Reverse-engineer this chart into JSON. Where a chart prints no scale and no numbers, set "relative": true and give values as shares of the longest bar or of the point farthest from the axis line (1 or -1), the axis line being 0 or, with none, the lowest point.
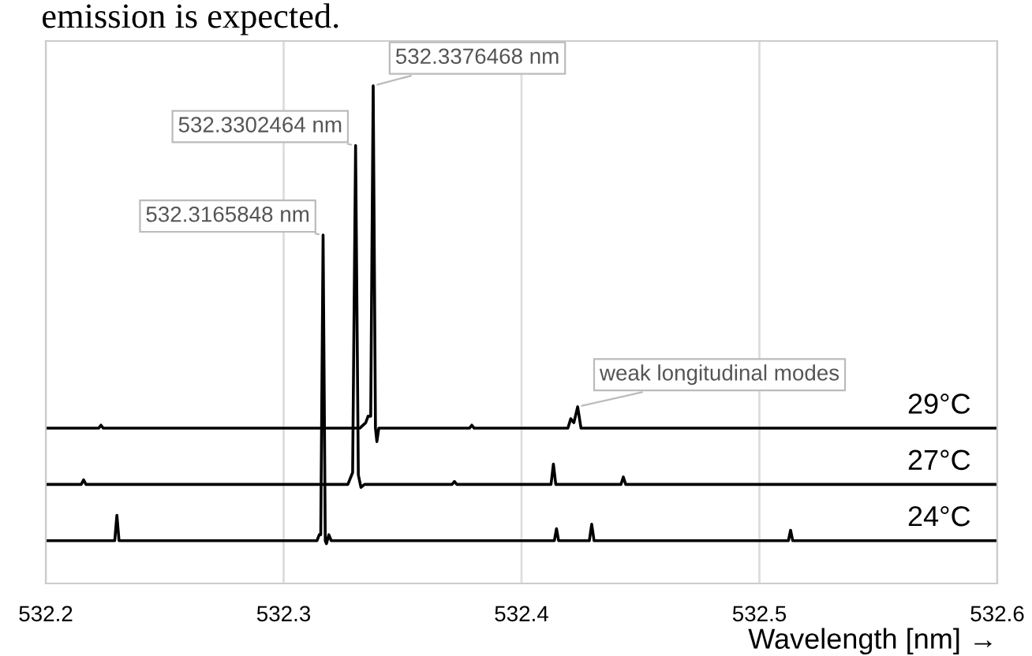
{
  "chart_data": {
    "type": "line",
    "relative": true,
    "xlabel": "Wavelength [nm] →",
    "xlim": [
      532.2,
      532.6
    ],
    "xticks": [
      532.2,
      532.3,
      532.4,
      532.5,
      532.6
    ],
    "grid": "x",
    "tick_labels": "x",
    "legend": false,
    "series": [
      {
        "name": "29°C",
        "color": "#000000",
        "x": [
          532.2,
          532.2222,
          532.2232,
          532.2242,
          532.332,
          532.3345,
          532.3355,
          532.3366,
          532.3376468,
          532.3386,
          532.3392,
          532.34,
          532.3781,
          532.3791,
          532.3801,
          532.4195,
          532.4207,
          532.422,
          532.4236,
          532.425,
          532.6
        ],
        "values": [
          0.312,
          0.312,
          0.318,
          0.312,
          0.312,
          0.323,
          0.336,
          0.336,
          1.0,
          0.312,
          0.285,
          0.312,
          0.312,
          0.318,
          0.312,
          0.312,
          0.331,
          0.323,
          0.355,
          0.312,
          0.312
        ]
      },
      {
        "name": "27°C",
        "color": "#000000",
        "x": [
          532.2,
          532.2149,
          532.2159,
          532.2169,
          532.327,
          532.329,
          532.3302464,
          532.3314,
          532.3325,
          532.334,
          532.3708,
          532.3718,
          532.3728,
          532.4124,
          532.4134,
          532.4144,
          532.4418,
          532.4428,
          532.4438,
          532.6
        ],
        "values": [
          0.199,
          0.199,
          0.208,
          0.199,
          0.199,
          0.223,
          0.88,
          0.218,
          0.193,
          0.199,
          0.199,
          0.205,
          0.199,
          0.199,
          0.24,
          0.199,
          0.199,
          0.214,
          0.199,
          0.199
        ]
      },
      {
        "name": "24°C",
        "color": "#000000",
        "x": [
          532.2,
          532.229,
          532.2299,
          532.2308,
          532.314,
          532.315,
          532.3156,
          532.3165848,
          532.3175,
          532.318,
          532.319,
          532.32,
          532.4138,
          532.4147,
          532.4156,
          532.4285,
          532.4295,
          532.4305,
          532.5122,
          532.5131,
          532.514,
          532.6
        ],
        "values": [
          0.086,
          0.086,
          0.137,
          0.086,
          0.086,
          0.098,
          0.098,
          0.7,
          0.086,
          0.08,
          0.098,
          0.086,
          0.086,
          0.11,
          0.086,
          0.086,
          0.119,
          0.086,
          0.086,
          0.107,
          0.086,
          0.086
        ]
      }
    ],
    "annotations": [
      "emission is expected.",
      {
        "text": "532.3165848 nm",
        "x": 532.3165848,
        "y": 0.7
      },
      {
        "text": "532.3302464 nm",
        "x": 532.3302464,
        "y": 0.88
      },
      {
        "text": "532.3376468 nm",
        "x": 532.3376468,
        "y": 1.0
      },
      {
        "text": "weak longitudinal modes",
        "x": 532.4236,
        "y": 0.355
      }
    ]
  }
}
